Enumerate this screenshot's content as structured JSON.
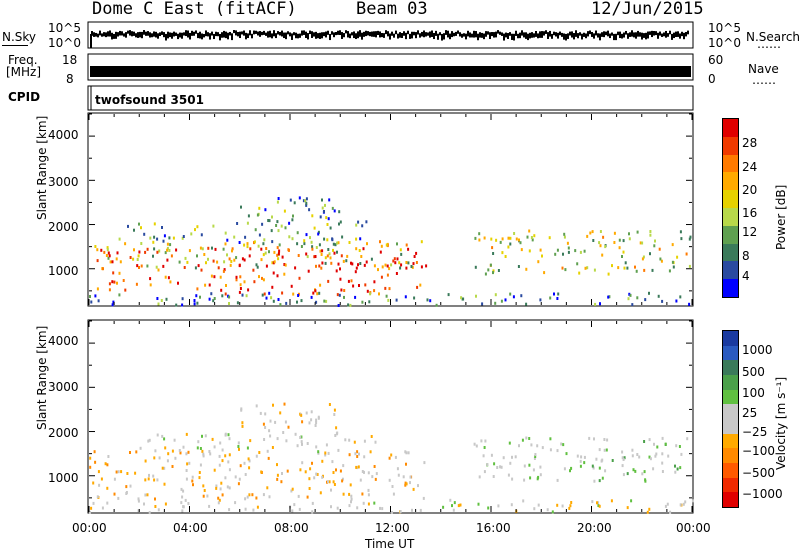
{
  "header": {
    "title": "Dome C East (fitACF)",
    "beam": "Beam 03",
    "date": "12/Jun/2015"
  },
  "strips": {
    "nsky_label": "N.Sky",
    "nsky_ticks": [
      "10^5",
      "10^0"
    ],
    "nsearch_label": "N.Search",
    "nsearch_ticks": [
      "10^5",
      "10^0"
    ],
    "freq_label_1": "Freq.",
    "freq_label_2": "[MHz]",
    "freq_ticks": [
      "18",
      "8"
    ],
    "nave_label": "Nave",
    "nave_ticks": [
      "60",
      "0"
    ],
    "cpid_label": "CPID",
    "cpid_value": "twofsound 3501",
    "dots": "……"
  },
  "axes": {
    "ylabel": "Slant Range [km]",
    "yticks": [
      "4000",
      "3000",
      "2000",
      "1000"
    ],
    "xlabel": "Time UT",
    "xticks": [
      "00:00",
      "04:00",
      "08:00",
      "12:00",
      "16:00",
      "20:00",
      "00:00"
    ]
  },
  "colorbars": {
    "power": {
      "label": "Power [dB]",
      "ticks": [
        "28",
        "24",
        "20",
        "16",
        "12",
        "8",
        "4"
      ],
      "colors": [
        "#e00000",
        "#f03a00",
        "#ff7a00",
        "#ffaa00",
        "#e6d200",
        "#b8d94a",
        "#5fa050",
        "#3a7a5a",
        "#2a4aa0",
        "#0000ff"
      ]
    },
    "velocity": {
      "label": "Velocity [m s⁻¹]",
      "ticks": [
        "1000",
        "500",
        "100",
        "25",
        "−25",
        "−100",
        "−500",
        "−1000"
      ],
      "colors": [
        "#1a3aa0",
        "#2a5ac0",
        "#3a7a5a",
        "#4aa04a",
        "#60c040",
        "#c8c8c8",
        "#c8c8c8",
        "#ffaa00",
        "#ff8a00",
        "#ff5a00",
        "#f02a00",
        "#e00000"
      ]
    }
  },
  "chart_data": {
    "type": "heatmap",
    "title": "Dome C East (fitACF)",
    "subtitle": "Beam 03",
    "date": "12/Jun/2015",
    "xlabel": "Time UT",
    "ylabel": "Slant Range [km]",
    "xlim_hours": [
      0,
      24
    ],
    "ylim_km": [
      180,
      4500
    ],
    "panels": [
      {
        "name": "Power [dB]",
        "clim": [
          0,
          30
        ],
        "regions": [
          {
            "t0": 0.0,
            "t1": 13.4,
            "r0": 1050,
            "r1": 1650,
            "value": 14
          },
          {
            "t0": 0.3,
            "t1": 13.4,
            "r0": 450,
            "r1": 1500,
            "value": 26
          },
          {
            "t0": 1.0,
            "t1": 11.0,
            "r0": 1600,
            "r1": 2100,
            "value": 10
          },
          {
            "t0": 6.0,
            "t1": 10.0,
            "r0": 2100,
            "r1": 2700,
            "value": 8
          },
          {
            "t0": 15.3,
            "t1": 24.0,
            "r0": 900,
            "r1": 1900,
            "value": 14
          },
          {
            "t0": 0.0,
            "t1": 24.0,
            "r0": 200,
            "r1": 480,
            "value": 6
          }
        ]
      },
      {
        "name": "Velocity [m s-1]",
        "clim": [
          -1000,
          1000
        ],
        "regions": [
          {
            "t0": 0.0,
            "t1": 13.4,
            "r0": 500,
            "r1": 1600,
            "value": -200
          },
          {
            "t0": 2.0,
            "t1": 11.5,
            "r0": 1500,
            "r1": 2000,
            "value": 0
          },
          {
            "t0": 6.0,
            "t1": 10.0,
            "r0": 2000,
            "r1": 2700,
            "value": -100
          },
          {
            "t0": 15.3,
            "t1": 24.0,
            "r0": 900,
            "r1": 1900,
            "value": 100
          },
          {
            "t0": 0.0,
            "t1": 24.0,
            "r0": 200,
            "r1": 480,
            "value": -50
          }
        ]
      }
    ]
  }
}
